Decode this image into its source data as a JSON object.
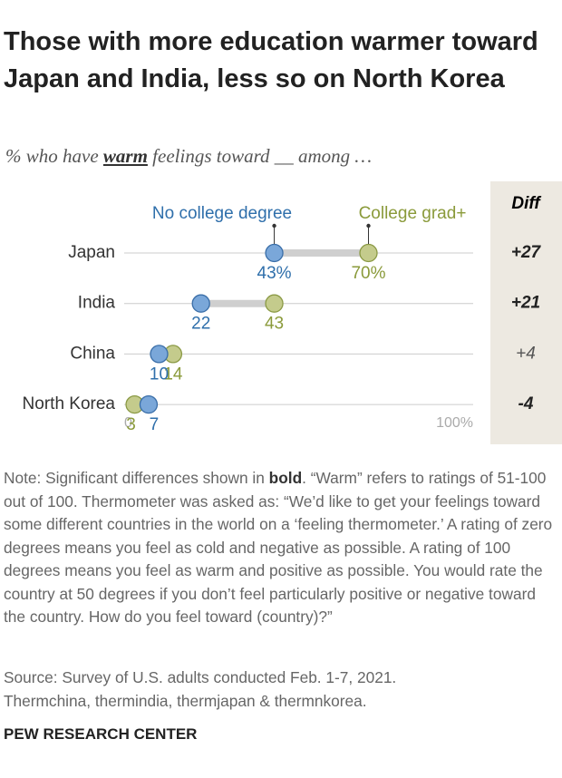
{
  "chart_data": {
    "type": "dot",
    "title": "Those with more education warmer toward Japan and India, less so on North Korea",
    "subtitle_parts": [
      "% who have ",
      "warm",
      " feelings toward __ among …"
    ],
    "categories": [
      "Japan",
      "India",
      "China",
      "North Korea"
    ],
    "series": [
      {
        "name": "No college degree",
        "color": "#7aa7d9",
        "values": [
          43,
          22,
          10,
          7
        ],
        "value_labels": [
          "43%",
          "22",
          "10",
          "7"
        ]
      },
      {
        "name": "College grad+",
        "color": "#c4cb8c",
        "values": [
          70,
          43,
          14,
          3
        ],
        "value_labels": [
          "70%",
          "43",
          "14",
          "3"
        ]
      }
    ],
    "xlim": [
      0,
      100
    ],
    "xticks": [
      0,
      {
        "value": 100,
        "label": "100%"
      }
    ],
    "diff": {
      "title": "Diff",
      "labels": [
        "+27",
        "+21",
        "+4",
        "-4"
      ],
      "bold": [
        true,
        true,
        false,
        true
      ]
    },
    "note_parts": [
      "Note: Significant differences shown in ",
      "bold",
      ". “Warm” refers to ratings of 51-100 out of 100. Thermometer was asked as: “We’d like to get your feelings toward some different countries in the world on a ‘feeling thermometer.’ A rating of zero degrees means you feel as cold and negative as possible. A rating of 100 degrees means you feel as warm and positive as possible. You would rate the country at 50 degrees if you don’t feel particularly positive or negative toward the country. How do you feel toward (country)?”"
    ],
    "source": "Source: Survey of U.S. adults conducted Feb. 1-7, 2021.",
    "source_detail": "Thermchina, thermindia, thermjapan & thermnkorea.",
    "footer": "PEW RESEARCH CENTER"
  }
}
